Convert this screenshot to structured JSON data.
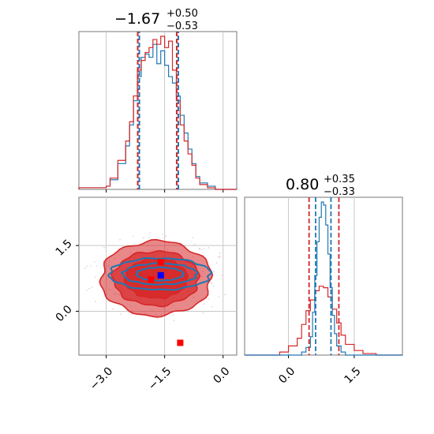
{
  "chart_data": {
    "type": "corner",
    "colors": {
      "red": "#d62728",
      "blue": "#1f77b4",
      "marker_blue": "#0000ff",
      "marker_red": "#ff0000",
      "grid": "#c8c8c8"
    },
    "titles": [
      {
        "main": "−1.67",
        "sup": "+0.50",
        "sub": "−0.53"
      },
      {
        "main": "0.80",
        "sup": "+0.35",
        "sub": "−0.33"
      }
    ],
    "param1": {
      "xlim": [
        -3.7,
        0.35
      ],
      "ticks": [
        -3.0,
        -1.5,
        0.0
      ],
      "tick_labels": [
        "−3.0",
        "−1.5",
        "0.0"
      ],
      "quantile_lines": [
        -2.17,
        -1.17
      ]
    },
    "param2": {
      "lim": [
        -1.0,
        2.6
      ],
      "ticks": [
        0.0,
        1.5
      ],
      "tick_labels": [
        "0.0",
        "1.5"
      ],
      "quantile_lines_red": [
        0.47,
        1.15
      ],
      "quantile_lines_blue": [
        0.62,
        0.97
      ]
    },
    "hist1_red": {
      "bin_edges": [
        -3.7,
        -3.0,
        -2.9,
        -2.7,
        -2.5,
        -2.4,
        -2.3,
        -2.2,
        -2.1,
        -2.0,
        -1.9,
        -1.8,
        -1.7,
        -1.6,
        -1.5,
        -1.4,
        -1.3,
        -1.2,
        -1.1,
        -1.0,
        -0.9,
        -0.8,
        -0.7,
        -0.6,
        -0.4,
        -0.2,
        0.35
      ],
      "counts": [
        0.01,
        0.02,
        0.07,
        0.18,
        0.3,
        0.42,
        0.58,
        0.74,
        0.8,
        0.85,
        0.88,
        0.93,
        0.9,
        0.95,
        0.88,
        0.92,
        0.74,
        0.55,
        0.4,
        0.3,
        0.22,
        0.15,
        0.07,
        0.03,
        0.01,
        0.0
      ]
    },
    "hist1_blue": {
      "bin_edges": [
        -3.7,
        -3.0,
        -2.9,
        -2.7,
        -2.5,
        -2.4,
        -2.3,
        -2.2,
        -2.1,
        -2.0,
        -1.9,
        -1.8,
        -1.7,
        -1.6,
        -1.5,
        -1.4,
        -1.3,
        -1.2,
        -1.1,
        -1.0,
        -0.9,
        -0.8,
        -0.7,
        -0.6,
        -0.4,
        -0.2,
        0.35
      ],
      "counts": [
        0.01,
        0.02,
        0.06,
        0.16,
        0.27,
        0.4,
        0.55,
        0.7,
        0.82,
        0.84,
        0.82,
        0.9,
        0.78,
        0.86,
        0.77,
        0.7,
        0.66,
        0.58,
        0.46,
        0.35,
        0.25,
        0.16,
        0.08,
        0.04,
        0.02,
        0.0
      ]
    },
    "hist2_red": {
      "bin_edges": [
        -1.0,
        -0.2,
        0.0,
        0.2,
        0.3,
        0.4,
        0.5,
        0.6,
        0.7,
        0.8,
        0.9,
        1.0,
        1.1,
        1.2,
        1.3,
        1.5,
        1.7,
        2.0,
        2.6
      ],
      "counts": [
        0.0,
        0.02,
        0.06,
        0.11,
        0.2,
        0.29,
        0.36,
        0.42,
        0.45,
        0.44,
        0.38,
        0.3,
        0.21,
        0.13,
        0.07,
        0.03,
        0.01,
        0.0
      ]
    },
    "hist2_blue": {
      "bin_edges": [
        -1.0,
        0.3,
        0.4,
        0.5,
        0.55,
        0.6,
        0.65,
        0.7,
        0.75,
        0.8,
        0.85,
        0.9,
        0.95,
        1.0,
        1.05,
        1.1,
        1.2,
        1.3,
        2.6
      ],
      "counts": [
        0.0,
        0.02,
        0.05,
        0.12,
        0.28,
        0.52,
        0.74,
        0.9,
        1.0,
        0.98,
        0.85,
        0.66,
        0.44,
        0.26,
        0.14,
        0.06,
        0.02,
        0.0
      ]
    },
    "contours_red": [
      {
        "cx": -1.72,
        "cy": 0.75,
        "rx": 1.42,
        "ry": 0.85,
        "opacity": 0.55
      },
      {
        "cx": -1.72,
        "cy": 0.75,
        "rx": 1.1,
        "ry": 0.62,
        "opacity": 0.7
      },
      {
        "cx": -1.72,
        "cy": 0.75,
        "rx": 0.8,
        "ry": 0.45,
        "opacity": 0.85
      }
    ],
    "contours_blue": [
      {
        "cx": -1.62,
        "cy": 0.85,
        "rx": 1.3,
        "ry": 0.36
      },
      {
        "cx": -1.62,
        "cy": 0.85,
        "rx": 0.95,
        "ry": 0.24
      },
      {
        "cx": -1.62,
        "cy": 0.85,
        "rx": 0.6,
        "ry": 0.15
      }
    ],
    "markers": [
      {
        "x": -1.6,
        "y": 1.12,
        "color": "#ff0000"
      },
      {
        "x": -1.85,
        "y": 0.72,
        "color": "#ff0000"
      },
      {
        "x": -1.6,
        "y": 0.82,
        "color": "#0000ff"
      },
      {
        "x": -1.1,
        "y": -0.72,
        "color": "#ff0000"
      }
    ]
  }
}
